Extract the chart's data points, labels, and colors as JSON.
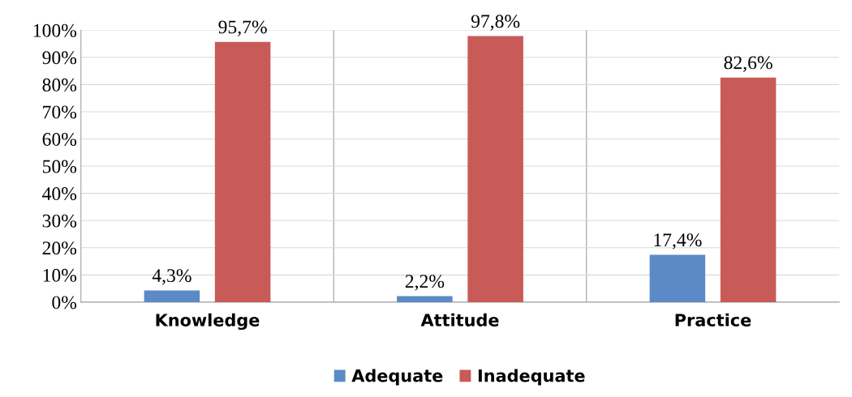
{
  "chart_data": {
    "type": "bar",
    "categories": [
      "Knowledge",
      "Attitude",
      "Practice"
    ],
    "series": [
      {
        "name": "Adequate",
        "color": "#5b8ac6",
        "values": [
          4.3,
          2.2,
          17.4
        ],
        "value_labels": [
          "4,3%",
          "2,2%",
          "17,4%"
        ]
      },
      {
        "name": "Inadequate",
        "color": "#c85a58",
        "values": [
          95.7,
          97.8,
          82.6
        ],
        "value_labels": [
          "95,7%",
          "97,8%",
          "82,6%"
        ]
      }
    ],
    "ylim": [
      0,
      100
    ],
    "yticks": [
      {
        "value": 0,
        "label": "0%"
      },
      {
        "value": 10,
        "label": "10%"
      },
      {
        "value": 20,
        "label": "20%"
      },
      {
        "value": 30,
        "label": "30%"
      },
      {
        "value": 40,
        "label": "40%"
      },
      {
        "value": 50,
        "label": "50%"
      },
      {
        "value": 60,
        "label": "60%"
      },
      {
        "value": 70,
        "label": "70%"
      },
      {
        "value": 80,
        "label": "80%"
      },
      {
        "value": 90,
        "label": "90%"
      },
      {
        "value": 100,
        "label": "100%"
      }
    ],
    "grid": true,
    "legend": "bottom"
  }
}
